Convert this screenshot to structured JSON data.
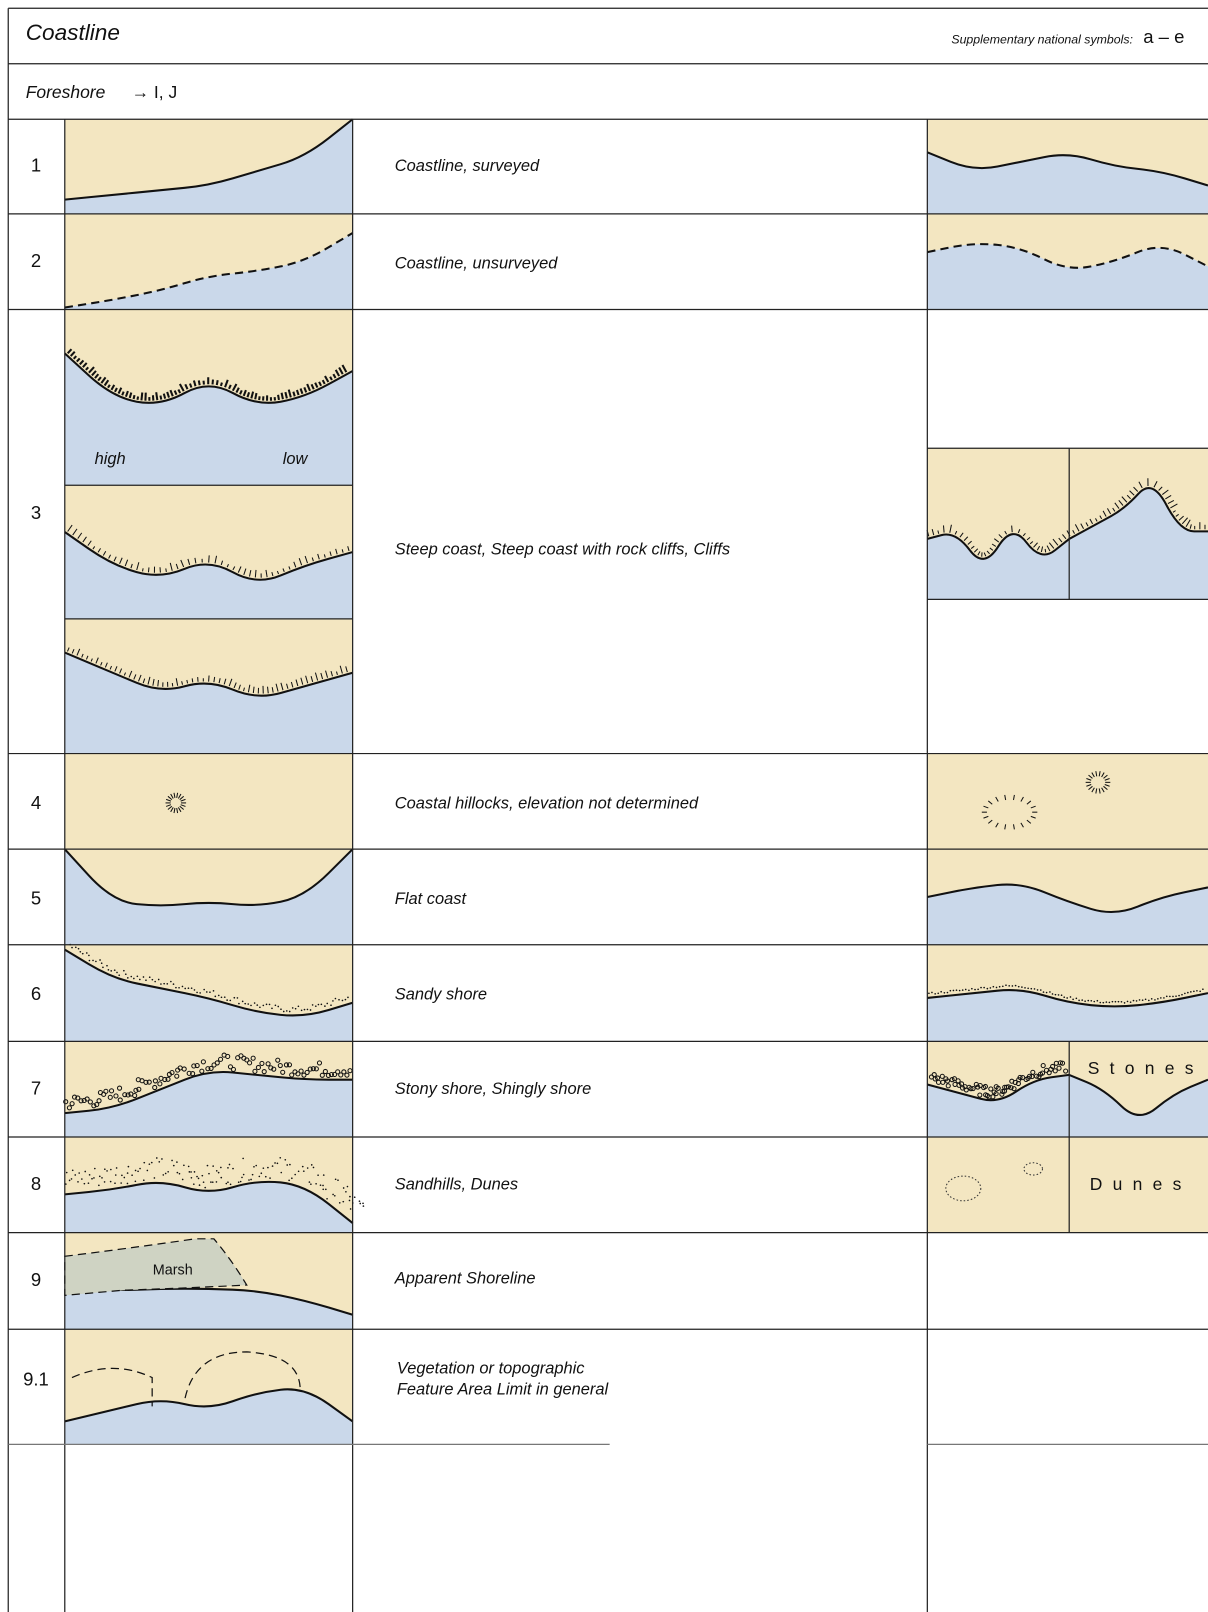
{
  "header": {
    "title": "Coastline",
    "supplementary": "Supplementary national symbols:",
    "symbols": "a – e"
  },
  "subheader": {
    "label": "Foreshore",
    "reference": "→ I, J"
  },
  "rows": [
    {
      "number": "1",
      "description": "Coastline, surveyed"
    },
    {
      "number": "2",
      "description": "Coastline, unsurveyed"
    },
    {
      "number": "3",
      "description": "Steep coast, Steep coast with rock cliffs, Cliffs",
      "labels": [
        "high",
        "low"
      ]
    },
    {
      "number": "4",
      "description": "Coastal hillocks, elevation not determined"
    },
    {
      "number": "5",
      "description": "Flat coast"
    },
    {
      "number": "6",
      "description": "Sandy shore"
    },
    {
      "number": "7",
      "description": "Stony shore, Shingly shore",
      "labels": [
        "Stones"
      ]
    },
    {
      "number": "8",
      "description": "Sandhills, Dunes",
      "labels": [
        "Dunes"
      ]
    },
    {
      "number": "9",
      "description": "Apparent  Shoreline",
      "labels": [
        "Marsh"
      ]
    },
    {
      "number": "9.1",
      "description": [
        "Vegetation or topographic",
        "Feature Area Limit in general"
      ]
    }
  ]
}
